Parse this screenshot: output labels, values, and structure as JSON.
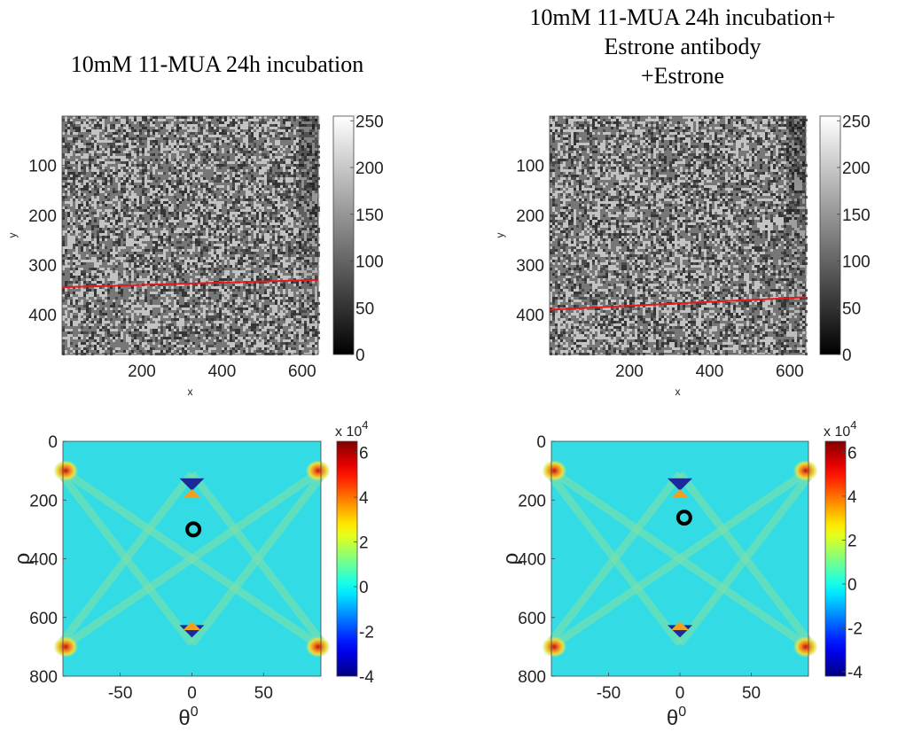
{
  "figure": {
    "left_title": "10mM 11-MUA 24h incubation",
    "right_title_lines": [
      "10mM 11-MUA 24h incubation+",
      "Estrone antibody",
      "+Estrone"
    ]
  },
  "colors": {
    "hough_background": "#33dce4",
    "red_line": "#e8181c",
    "marker": "#000000"
  },
  "chart_data": [
    {
      "id": "image_left",
      "type": "heatmap",
      "title": "10mM 11-MUA 24h incubation",
      "xlabel": "x",
      "ylabel": "y",
      "xlim": [
        1,
        640
      ],
      "ylim": [
        1,
        480
      ],
      "y_reversed": true,
      "x_ticks": [
        200,
        400,
        600
      ],
      "y_ticks": [
        100,
        200,
        300,
        400
      ],
      "colorbar": {
        "colormap": "gray",
        "range": [
          0,
          255
        ],
        "ticks": [
          0,
          50,
          100,
          150,
          200,
          250
        ]
      },
      "overlay_line": {
        "x": [
          1,
          640
        ],
        "y": [
          345,
          330
        ]
      }
    },
    {
      "id": "image_right",
      "type": "heatmap",
      "title": "10mM 11-MUA 24h incubation+ Estrone antibody +Estrone",
      "xlabel": "x",
      "ylabel": "y",
      "xlim": [
        1,
        640
      ],
      "ylim": [
        1,
        480
      ],
      "y_reversed": true,
      "x_ticks": [
        200,
        400,
        600
      ],
      "y_ticks": [
        100,
        200,
        300,
        400
      ],
      "colorbar": {
        "colormap": "gray",
        "range": [
          0,
          255
        ],
        "ticks": [
          0,
          50,
          100,
          150,
          200,
          250
        ]
      },
      "overlay_line": {
        "x": [
          1,
          640
        ],
        "y": [
          390,
          365
        ]
      }
    },
    {
      "id": "hough_left",
      "type": "heatmap",
      "xlabel": "θ",
      "xlabel_sup": "0",
      "ylabel": "ρ",
      "xlim": [
        -90,
        90
      ],
      "ylim": [
        0,
        800
      ],
      "y_reversed": true,
      "x_ticks": [
        -50,
        0,
        50
      ],
      "y_ticks": [
        0,
        200,
        400,
        600,
        800
      ],
      "colorbar": {
        "colormap": "jet",
        "range": [
          -4,
          6.5
        ],
        "ticks": [
          -4,
          -2,
          0,
          2,
          4,
          6
        ],
        "multiplier_base": "x 10",
        "multiplier_exp": "4"
      },
      "peak": {
        "theta": 1,
        "rho": 300
      }
    },
    {
      "id": "hough_right",
      "type": "heatmap",
      "xlabel": "θ",
      "xlabel_sup": "0",
      "ylabel": "ρ",
      "xlim": [
        -90,
        90
      ],
      "ylim": [
        0,
        800
      ],
      "y_reversed": true,
      "x_ticks": [
        -50,
        0,
        50
      ],
      "y_ticks": [
        0,
        200,
        400,
        600,
        800
      ],
      "colorbar": {
        "colormap": "jet",
        "range": [
          -4.2,
          6.5
        ],
        "ticks": [
          -4,
          -2,
          0,
          2,
          4,
          6
        ],
        "multiplier_base": "x 10",
        "multiplier_exp": "4"
      },
      "peak": {
        "theta": 3,
        "rho": 260
      }
    }
  ]
}
